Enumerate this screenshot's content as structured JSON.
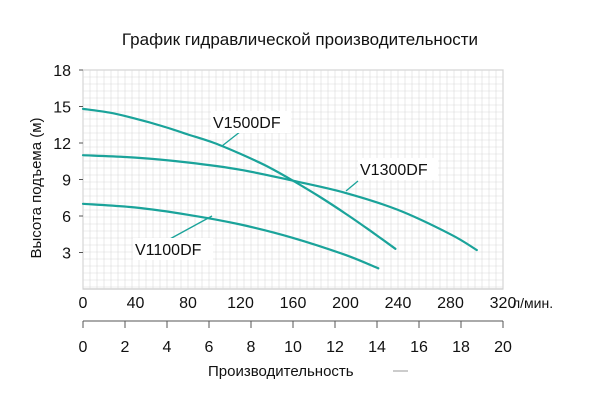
{
  "chart_data": {
    "type": "line",
    "title": "График гидравлической производительности",
    "ylabel": "Высота подъема (м)",
    "xlabel": "Производительность",
    "ylim": [
      0,
      18
    ],
    "yticks": [
      "3",
      "6",
      "9",
      "12",
      "15",
      "18"
    ],
    "x_primary": {
      "unit": "л/мин.",
      "range": [
        0,
        320
      ],
      "ticks": [
        "0",
        "40",
        "80",
        "120",
        "160",
        "200",
        "240",
        "280",
        "320"
      ]
    },
    "x_secondary": {
      "range": [
        0,
        20
      ],
      "ticks": [
        "0",
        "2",
        "4",
        "6",
        "8",
        "10",
        "12",
        "14",
        "16",
        "18",
        "20"
      ]
    },
    "series": [
      {
        "name": "V1500DF",
        "color": "#1aa39a",
        "x": [
          0,
          20,
          40,
          60,
          80,
          100,
          120,
          140,
          160,
          180,
          200,
          220,
          238
        ],
        "y": [
          14.8,
          14.5,
          14.0,
          13.4,
          12.7,
          12.0,
          11.1,
          10.1,
          8.9,
          7.6,
          6.2,
          4.7,
          3.3
        ]
      },
      {
        "name": "V1300DF",
        "color": "#1aa39a",
        "x": [
          0,
          40,
          80,
          120,
          160,
          200,
          240,
          280,
          300
        ],
        "y": [
          11.0,
          10.8,
          10.4,
          9.8,
          8.9,
          7.9,
          6.5,
          4.5,
          3.2
        ]
      },
      {
        "name": "V1100DF",
        "color": "#1aa39a",
        "x": [
          0,
          40,
          80,
          120,
          160,
          200,
          225
        ],
        "y": [
          7.0,
          6.7,
          6.1,
          5.3,
          4.2,
          2.8,
          1.7
        ]
      }
    ]
  }
}
